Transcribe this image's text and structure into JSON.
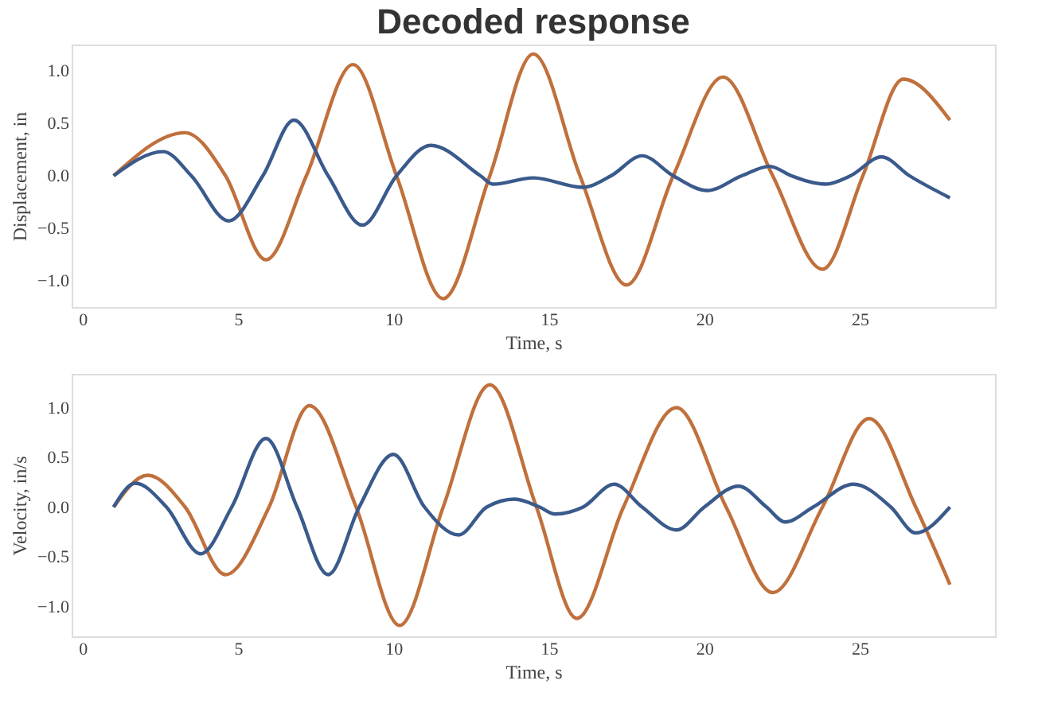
{
  "chart_data": [
    {
      "type": "line",
      "title": "Decoded response",
      "xlabel": "Time, s",
      "ylabel": "Displacement, in",
      "xlim": [
        -0.35,
        29.35
      ],
      "xticks": [
        0,
        5,
        10,
        15,
        20,
        25
      ],
      "ylim": [
        -1.25,
        1.25
      ],
      "yticks": [
        {
          "value": -1,
          "label": "−1.0"
        },
        {
          "value": -0.5,
          "label": "−0.5"
        },
        {
          "value": 0,
          "label": "0.0"
        },
        {
          "value": 0.5,
          "label": "0.5"
        },
        {
          "value": 1,
          "label": "1.0"
        }
      ],
      "grid": false,
      "line_style": "solid",
      "marker": "none",
      "series": [
        {
          "color": "#c0703c",
          "x": [
            1.0,
            3.3,
            4.6,
            5.9,
            7.2,
            8.7,
            10.1,
            11.6,
            13.1,
            14.5,
            16.0,
            17.5,
            19.0,
            20.6,
            22.2,
            23.8,
            25.1,
            26.4,
            27.9
          ],
          "values": [
            0.0,
            0.41,
            0.0,
            -0.8,
            0.0,
            1.06,
            0.0,
            -1.17,
            0.0,
            1.16,
            0.0,
            -1.04,
            0.0,
            0.94,
            0.0,
            -0.89,
            0.0,
            0.92,
            0.53
          ]
        },
        {
          "color": "#3a5a8c",
          "x": [
            1.0,
            2.6,
            3.5,
            4.7,
            5.8,
            6.8,
            7.9,
            9.0,
            10.1,
            11.2,
            12.8,
            13.2,
            14.5,
            16.1,
            17.0,
            18.0,
            19.0,
            20.1,
            21.2,
            22.1,
            22.8,
            23.9,
            24.7,
            25.7,
            26.6,
            27.9
          ],
          "values": [
            0.0,
            0.23,
            0.0,
            -0.43,
            0.0,
            0.53,
            0.0,
            -0.47,
            0.0,
            0.29,
            0.0,
            -0.08,
            -0.02,
            -0.11,
            0.0,
            0.19,
            0.0,
            -0.14,
            0.0,
            0.09,
            0.0,
            -0.08,
            0.0,
            0.18,
            0.0,
            -0.21
          ]
        }
      ]
    },
    {
      "type": "line",
      "xlabel": "Time, s",
      "ylabel": "Velocity, in/s",
      "xlim": [
        -0.35,
        29.35
      ],
      "xticks": [
        0,
        5,
        10,
        15,
        20,
        25
      ],
      "ylim": [
        -1.3,
        1.34
      ],
      "yticks": [
        {
          "value": -1,
          "label": "−1.0"
        },
        {
          "value": -0.5,
          "label": "−0.5"
        },
        {
          "value": 0,
          "label": "0.0"
        },
        {
          "value": 0.5,
          "label": "0.5"
        },
        {
          "value": 1,
          "label": "1.0"
        }
      ],
      "grid": false,
      "line_style": "solid",
      "marker": "none",
      "series": [
        {
          "color": "#c0703c",
          "x": [
            1.0,
            2.1,
            3.3,
            4.6,
            6.0,
            7.3,
            8.8,
            10.2,
            11.6,
            13.1,
            14.6,
            15.9,
            17.4,
            19.1,
            20.7,
            22.2,
            23.8,
            25.3,
            26.8,
            27.9
          ],
          "values": [
            0.0,
            0.32,
            0.0,
            -0.68,
            0.0,
            1.02,
            0.0,
            -1.19,
            0.0,
            1.23,
            0.0,
            -1.12,
            0.0,
            1.0,
            0.0,
            -0.86,
            0.0,
            0.89,
            0.0,
            -0.78
          ]
        },
        {
          "color": "#3a5a8c",
          "x": [
            1.0,
            1.7,
            2.7,
            3.8,
            4.8,
            5.9,
            6.9,
            7.9,
            8.9,
            10.0,
            11.0,
            12.1,
            13.0,
            13.9,
            14.7,
            15.2,
            16.1,
            17.1,
            18.0,
            19.1,
            20.0,
            21.1,
            22.0,
            22.6,
            23.5,
            24.8,
            26.0,
            26.8,
            27.9
          ],
          "values": [
            0.0,
            0.24,
            0.0,
            -0.47,
            0.0,
            0.69,
            0.0,
            -0.68,
            0.0,
            0.53,
            0.0,
            -0.28,
            0.0,
            0.08,
            0.0,
            -0.07,
            0.0,
            0.23,
            0.0,
            -0.23,
            0.0,
            0.21,
            0.0,
            -0.15,
            0.0,
            0.23,
            0.0,
            -0.26,
            0.0
          ]
        }
      ]
    }
  ]
}
